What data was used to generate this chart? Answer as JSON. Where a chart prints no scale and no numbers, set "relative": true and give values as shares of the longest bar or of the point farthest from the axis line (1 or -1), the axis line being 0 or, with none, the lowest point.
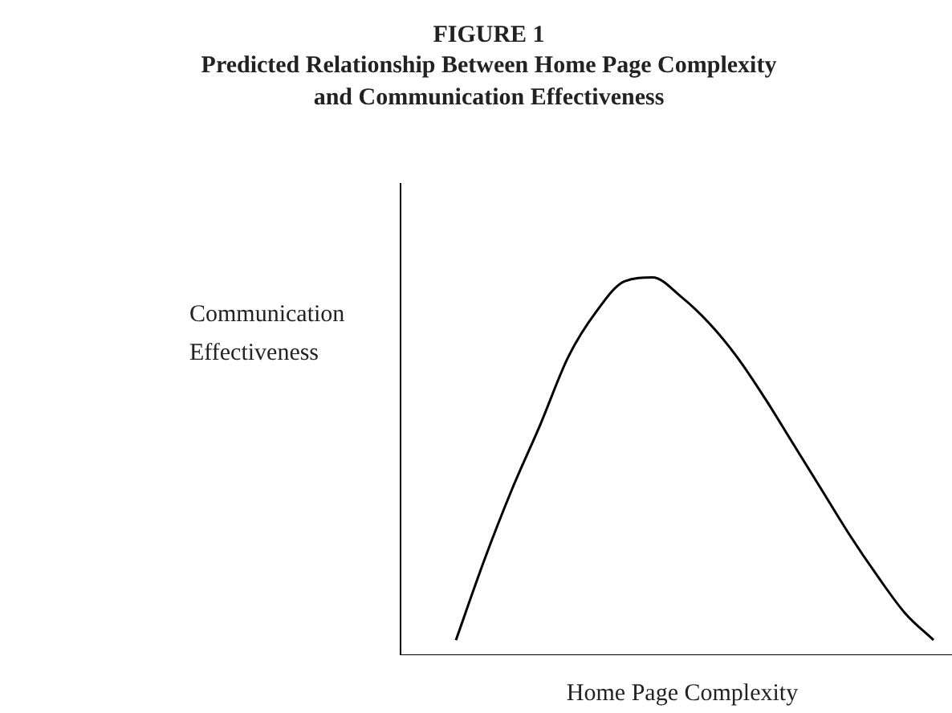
{
  "chart_data": {
    "type": "line",
    "title": "FIGURE 1",
    "subtitle": "Predicted Relationship Between Home Page Complexity and Communication Effectiveness",
    "xlabel": "Home Page Complexity",
    "ylabel": "Communication Effectiveness",
    "relative": true,
    "marker": "none",
    "line_style": "solid",
    "categories": [
      null,
      null,
      null,
      null,
      null,
      null,
      null,
      null,
      null,
      null,
      null,
      null,
      null,
      null,
      null,
      null,
      null,
      null,
      null,
      null,
      null
    ],
    "series": [
      {
        "color": "#000000",
        "values": [
          null,
          null,
          0.04,
          0.25,
          0.44,
          0.61,
          0.79,
          0.91,
          0.99,
          1,
          0.95,
          0.88,
          0.79,
          0.68,
          0.56,
          0.44,
          0.32,
          0.21,
          0.11,
          0.04,
          null
        ]
      }
    ]
  }
}
